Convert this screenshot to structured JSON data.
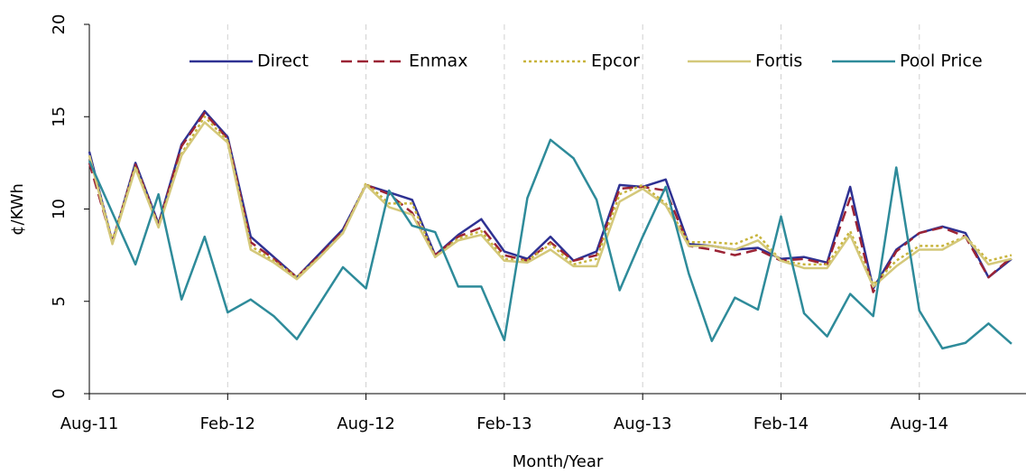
{
  "chart_data": {
    "type": "line",
    "x_label": "Month/Year",
    "y_label": "¢/KWh",
    "categories": [
      "Aug-11",
      null,
      null,
      null,
      null,
      null,
      "Feb-12",
      null,
      null,
      null,
      null,
      null,
      "Aug-12",
      null,
      null,
      null,
      null,
      null,
      "Feb-13",
      null,
      null,
      null,
      null,
      null,
      "Aug-13",
      null,
      null,
      null,
      null,
      null,
      "Feb-14",
      null,
      null,
      null,
      null,
      null,
      "Aug-14",
      null,
      null,
      null,
      null
    ],
    "ylim": [
      0,
      20
    ],
    "yticks": [
      0,
      5,
      10,
      15,
      20
    ],
    "grid": "x",
    "legend": "top-right",
    "series": [
      {
        "name": "Direct",
        "color": "#2e3192",
        "style": "solid",
        "values": [
          13.1,
          8.2,
          12.5,
          9.2,
          13.5,
          15.3,
          13.9,
          8.5,
          7.4,
          6.3,
          7.6,
          8.9,
          11.3,
          10.9,
          10.5,
          7.5,
          8.6,
          9.45,
          7.7,
          7.3,
          8.5,
          7.2,
          7.7,
          11.3,
          11.2,
          11.6,
          8.1,
          8.0,
          7.8,
          7.9,
          7.3,
          7.4,
          7.1,
          11.2,
          5.7,
          7.8,
          8.7,
          9.05,
          8.7,
          6.3,
          7.3
        ]
      },
      {
        "name": "Enmax",
        "color": "#9b2335",
        "style": "dashed",
        "values": [
          12.5,
          8.2,
          12.4,
          9.1,
          13.4,
          15.2,
          13.8,
          8.2,
          7.3,
          6.3,
          7.5,
          8.8,
          11.3,
          10.8,
          9.8,
          7.5,
          8.5,
          9.0,
          7.5,
          7.2,
          8.2,
          7.2,
          7.5,
          11.1,
          11.2,
          11.0,
          8.0,
          7.8,
          7.5,
          7.8,
          7.2,
          7.3,
          7.0,
          10.6,
          5.5,
          7.7,
          8.7,
          9.0,
          8.5,
          6.3,
          7.4
        ]
      },
      {
        "name": "Epcor",
        "color": "#c8b43c",
        "style": "dotted",
        "values": [
          12.9,
          8.3,
          12.3,
          9.1,
          13.0,
          15.0,
          13.7,
          8.0,
          7.2,
          6.3,
          7.4,
          8.7,
          11.4,
          10.3,
          10.3,
          7.4,
          8.4,
          8.8,
          7.3,
          7.2,
          8.1,
          7.0,
          7.3,
          10.8,
          11.3,
          10.3,
          8.2,
          8.2,
          8.1,
          8.6,
          7.2,
          7.0,
          7.0,
          8.8,
          5.9,
          7.2,
          8.0,
          8.0,
          8.5,
          7.2,
          7.5
        ]
      },
      {
        "name": "Fortis",
        "color": "#d4c87a",
        "style": "solid",
        "values": [
          12.9,
          8.1,
          12.2,
          9.0,
          12.9,
          14.7,
          13.6,
          7.8,
          7.1,
          6.2,
          7.4,
          8.7,
          11.3,
          10.1,
          9.7,
          7.4,
          8.3,
          8.6,
          7.2,
          7.1,
          7.8,
          6.9,
          6.9,
          10.4,
          11.1,
          10.2,
          8.0,
          8.0,
          7.8,
          8.3,
          7.2,
          6.8,
          6.8,
          8.6,
          5.8,
          6.9,
          7.8,
          7.8,
          8.5,
          7.0,
          7.3
        ]
      },
      {
        "name": "Pool Price",
        "color": "#2e8b9a",
        "style": "solid",
        "values": [
          12.6,
          9.8,
          7.0,
          10.8,
          5.1,
          8.5,
          4.4,
          5.1,
          4.2,
          2.95,
          4.9,
          6.85,
          5.7,
          11.0,
          9.1,
          8.75,
          5.8,
          5.8,
          2.9,
          10.6,
          13.75,
          12.75,
          10.5,
          5.6,
          8.5,
          11.2,
          6.5,
          2.85,
          5.2,
          4.55,
          9.6,
          4.35,
          3.1,
          5.4,
          4.2,
          12.25,
          4.5,
          2.45,
          2.75,
          3.8,
          2.7
        ]
      }
    ]
  }
}
